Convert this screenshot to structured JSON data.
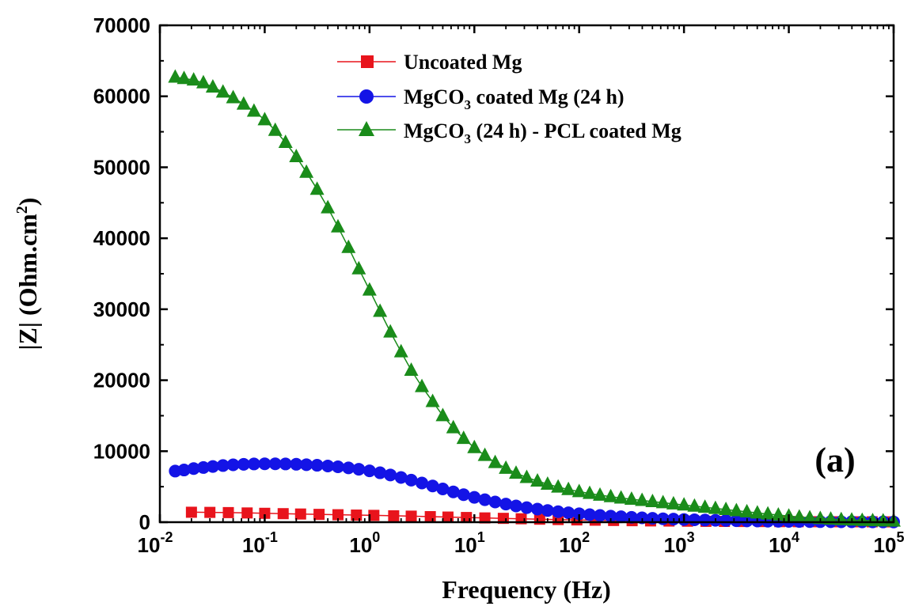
{
  "chart_data": {
    "type": "scatter",
    "x_scale": "log",
    "xlabel": "Frequency (Hz)",
    "ylabel": "|Z| (Ohm.cm2)",
    "ylabel_parts": {
      "main": "|Z| (Ohm.cm",
      "sup": "2",
      "close": ")"
    },
    "xlim": [
      0.01,
      100000
    ],
    "ylim": [
      0,
      70000
    ],
    "y_ticks": [
      0,
      10000,
      20000,
      30000,
      40000,
      50000,
      60000,
      70000
    ],
    "y_tick_labels": [
      "0",
      "10000",
      "20000",
      "30000",
      "40000",
      "50000",
      "60000",
      "70000"
    ],
    "x_tick_exponents": [
      "-2",
      "-1",
      "0",
      "1",
      "2",
      "3",
      "4",
      "5"
    ],
    "x_tick_base": "10",
    "grid": false,
    "legend_position": "top-center",
    "panel_label": "(a)",
    "series": [
      {
        "name": "Uncoated Mg",
        "legend_parts": [
          "Uncoated Mg"
        ],
        "marker": "square",
        "color": "#e8141c",
        "x": [
          0.02,
          0.03,
          0.045,
          0.068,
          0.1,
          0.15,
          0.22,
          0.33,
          0.5,
          0.75,
          1.1,
          1.7,
          2.5,
          3.8,
          5.6,
          8.4,
          12.6,
          18.9,
          28,
          42,
          63,
          95,
          142,
          213,
          320,
          480,
          720,
          1080,
          1620,
          2430,
          3650,
          5470,
          8200,
          12300,
          18500,
          27700,
          41600,
          62400,
          93600
        ],
        "y": [
          1400,
          1380,
          1350,
          1300,
          1250,
          1200,
          1150,
          1100,
          1050,
          1000,
          960,
          900,
          850,
          780,
          720,
          660,
          600,
          540,
          480,
          420,
          370,
          320,
          280,
          240,
          210,
          180,
          160,
          140,
          120,
          110,
          100,
          90,
          80,
          70,
          65,
          60,
          55,
          50,
          45
        ]
      },
      {
        "name": "MgCO3 coated Mg (24 h)",
        "legend_parts": [
          "MgCO",
          "3",
          " coated Mg (24 h)"
        ],
        "marker": "circle",
        "color": "#1414e6",
        "x": [
          0.014,
          0.017,
          0.021,
          0.026,
          0.032,
          0.04,
          0.05,
          0.063,
          0.079,
          0.1,
          0.126,
          0.158,
          0.2,
          0.25,
          0.316,
          0.4,
          0.5,
          0.63,
          0.79,
          1.0,
          1.26,
          1.58,
          2.0,
          2.5,
          3.16,
          4.0,
          5.0,
          6.3,
          7.9,
          10,
          12.6,
          15.8,
          20,
          25,
          31.6,
          40,
          50,
          63,
          79,
          100,
          126,
          158,
          200,
          251,
          316,
          398,
          501,
          631,
          794,
          1000,
          1259,
          1585,
          1995,
          2512,
          3162,
          3981,
          5012,
          6310,
          7943,
          10000,
          12589,
          15849,
          19953,
          25119,
          31623,
          39811,
          50119,
          63096,
          79433,
          100000
        ],
        "y": [
          7200,
          7350,
          7550,
          7700,
          7850,
          7980,
          8080,
          8150,
          8200,
          8220,
          8220,
          8200,
          8160,
          8100,
          8020,
          7920,
          7800,
          7650,
          7460,
          7230,
          6960,
          6650,
          6300,
          5920,
          5520,
          5100,
          4680,
          4270,
          3870,
          3500,
          3160,
          2840,
          2550,
          2290,
          2050,
          1840,
          1650,
          1480,
          1330,
          1190,
          1060,
          950,
          850,
          760,
          680,
          610,
          540,
          480,
          430,
          380,
          340,
          300,
          265,
          235,
          210,
          185,
          165,
          145,
          130,
          115,
          100,
          90,
          80,
          70,
          62,
          55,
          48,
          42,
          37,
          33
        ]
      },
      {
        "name": "MgCO3 (24 h) - PCL coated Mg",
        "legend_parts": [
          "MgCO",
          "3",
          " (24 h) - PCL coated Mg"
        ],
        "marker": "triangle",
        "color": "#1a8c1a",
        "x": [
          0.014,
          0.017,
          0.021,
          0.026,
          0.032,
          0.04,
          0.05,
          0.063,
          0.079,
          0.1,
          0.126,
          0.158,
          0.2,
          0.25,
          0.316,
          0.4,
          0.5,
          0.63,
          0.79,
          1.0,
          1.26,
          1.58,
          2.0,
          2.5,
          3.16,
          4.0,
          5.0,
          6.3,
          7.9,
          10,
          12.6,
          15.8,
          20,
          25,
          31.6,
          40,
          50,
          63,
          79,
          100,
          126,
          158,
          200,
          251,
          316,
          398,
          501,
          631,
          794,
          1000,
          1259,
          1585,
          1995,
          2512,
          3162,
          3981,
          5012,
          6310,
          7943,
          10000,
          12589,
          15849,
          19953,
          25119,
          31623,
          39811,
          50119,
          63096,
          79433,
          100000
        ],
        "y": [
          62700,
          62500,
          62300,
          61900,
          61300,
          60600,
          59800,
          58900,
          57900,
          56700,
          55200,
          53500,
          51500,
          49300,
          46900,
          44300,
          41600,
          38700,
          35700,
          32700,
          29700,
          26800,
          24000,
          21400,
          19100,
          17000,
          15000,
          13300,
          11800,
          10500,
          9400,
          8400,
          7600,
          6900,
          6300,
          5800,
          5350,
          4950,
          4600,
          4300,
          4050,
          3800,
          3600,
          3400,
          3230,
          3060,
          2900,
          2740,
          2580,
          2420,
          2260,
          2100,
          1940,
          1780,
          1620,
          1460,
          1300,
          1150,
          1000,
          860,
          730,
          620,
          520,
          430,
          360,
          300,
          250,
          210,
          180,
          150
        ]
      }
    ]
  }
}
